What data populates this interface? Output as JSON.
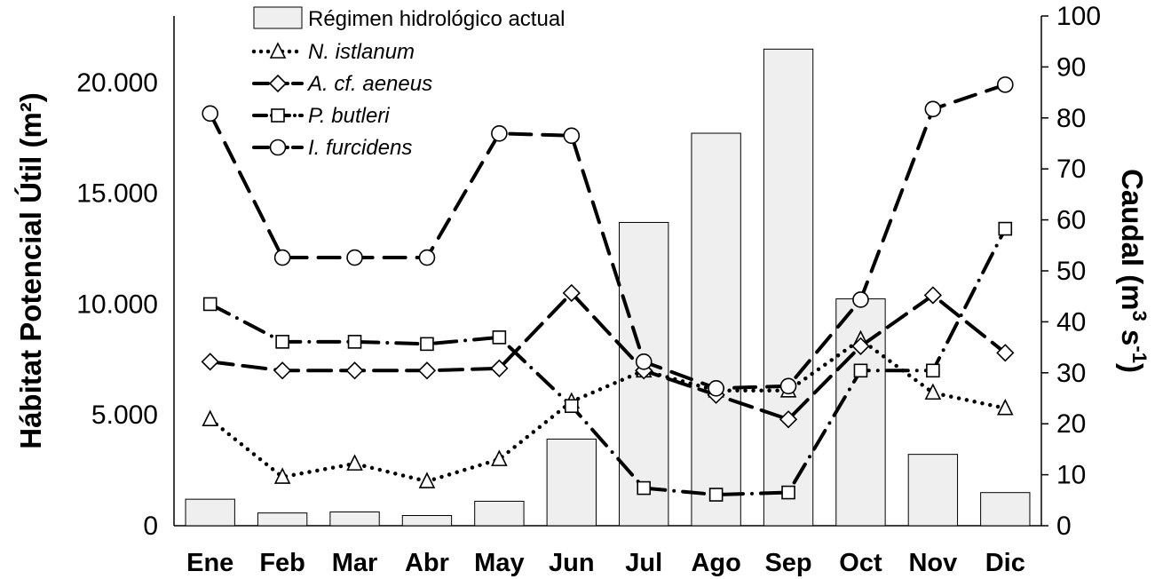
{
  "chart_data": {
    "type": "bar+line",
    "categories": [
      "Ene",
      "Feb",
      "Mar",
      "Abr",
      "May",
      "Jun",
      "Jul",
      "Ago",
      "Sep",
      "Oct",
      "Nov",
      "Dic"
    ],
    "ylabel_left": "Hábitat Potencial Útil (m²)",
    "ylabel_right_main": "Caudal (m",
    "ylabel_right_sup1": "3",
    "ylabel_right_mid": " s",
    "ylabel_right_sup2": "-1",
    "ylabel_right_end": ")",
    "ylim_left": [
      0,
      23000
    ],
    "yticks_left": [
      "0",
      "5.000",
      "10.000",
      "15.000",
      "20.000"
    ],
    "ylim_right": [
      0,
      100
    ],
    "yticks_right": [
      "0",
      "10",
      "20",
      "30",
      "40",
      "50",
      "60",
      "70",
      "80",
      "90",
      "100"
    ],
    "legend_position": "top-center",
    "bar_series": {
      "name": "Régimen hidrológico actual",
      "axis": "right",
      "color": "#efefef",
      "values": [
        5.2,
        2.5,
        2.7,
        2.0,
        4.8,
        17.0,
        59.5,
        77.0,
        93.5,
        44.5,
        14.0,
        6.5
      ]
    },
    "series": [
      {
        "name": "N. istlanum",
        "axis": "left",
        "marker": "triangle",
        "dash": "dot",
        "values": [
          4800,
          2200,
          2800,
          2000,
          3000,
          5600,
          7000,
          6100,
          6100,
          8400,
          6000,
          5300
        ]
      },
      {
        "name": "A. cf. aeneus",
        "axis": "left",
        "marker": "diamond",
        "dash": "longdash",
        "values": [
          7400,
          7000,
          7000,
          7000,
          7100,
          10500,
          7000,
          5900,
          4800,
          8100,
          10400,
          7800
        ]
      },
      {
        "name": "P. butleri",
        "axis": "left",
        "marker": "square",
        "dash": "dashdot",
        "values": [
          10000,
          8300,
          8300,
          8200,
          8500,
          5400,
          1700,
          1400,
          1500,
          7000,
          7000,
          13400
        ]
      },
      {
        "name": "I. furcidens",
        "axis": "left",
        "marker": "circle",
        "dash": "dash",
        "values": [
          18600,
          12100,
          12100,
          12100,
          17700,
          17600,
          7400,
          6200,
          6300,
          10200,
          18800,
          19900
        ]
      }
    ]
  }
}
